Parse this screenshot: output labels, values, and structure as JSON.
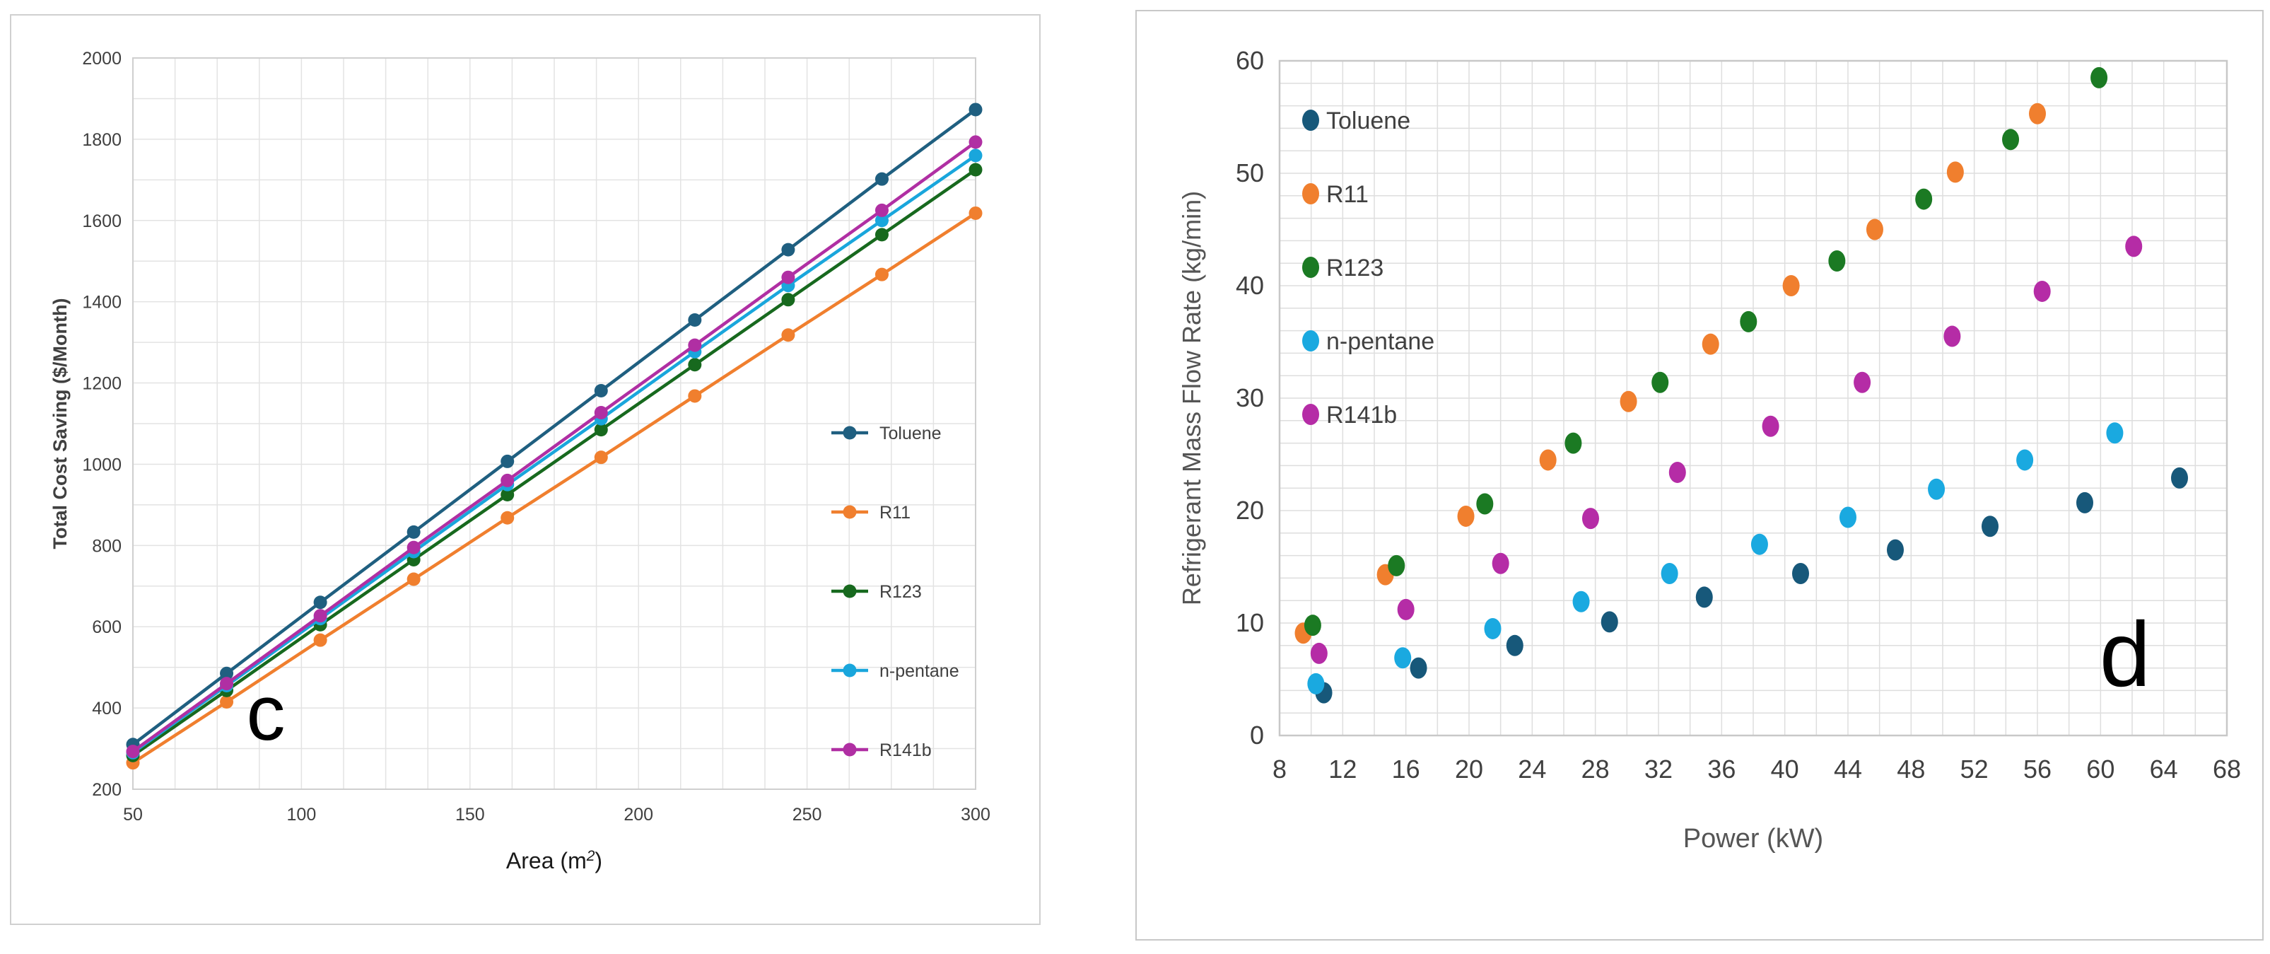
{
  "chart_data": [
    {
      "type": "line",
      "panel_letter": "c",
      "title": "",
      "xlabel": "Area (m",
      "xlabel_sup": "2",
      "xlabel_close": ")",
      "ylabel": "Total Cost Saving ($/Month)",
      "xlim": [
        50,
        300
      ],
      "ylim": [
        200,
        2000
      ],
      "xticks": [
        50,
        100,
        150,
        200,
        250,
        300
      ],
      "yticks": [
        200,
        400,
        600,
        800,
        1000,
        1200,
        1400,
        1600,
        1800,
        2000
      ],
      "grid": true,
      "legend_position": "center-right",
      "x": [
        50,
        77.8,
        105.6,
        133.3,
        161.1,
        188.9,
        216.7,
        244.4,
        272.2,
        300
      ],
      "series": [
        {
          "name": "Toluene",
          "color": "#1f5f80",
          "values": [
            310,
            485,
            660,
            833,
            1007,
            1181,
            1355,
            1528,
            1702,
            1873
          ]
        },
        {
          "name": "R11",
          "color": "#f07f2e",
          "values": [
            265,
            415,
            567,
            717,
            868,
            1017,
            1168,
            1318,
            1467,
            1618
          ]
        },
        {
          "name": "R123",
          "color": "#17691e",
          "values": [
            283,
            443,
            605,
            765,
            925,
            1085,
            1245,
            1405,
            1565,
            1725
          ]
        },
        {
          "name": "n-pentane",
          "color": "#19a6dc",
          "values": [
            290,
            455,
            620,
            785,
            950,
            1112,
            1277,
            1440,
            1600,
            1760
          ]
        },
        {
          "name": "R141b",
          "color": "#b02fa3",
          "values": [
            293,
            460,
            627,
            795,
            960,
            1127,
            1293,
            1460,
            1625,
            1793
          ]
        }
      ]
    },
    {
      "type": "scatter",
      "panel_letter": "d",
      "title": "",
      "xlabel": "Power (kW)",
      "ylabel": "Refrigerant Mass Flow Rate (kg/min)",
      "xlim": [
        8,
        68
      ],
      "ylim": [
        0,
        60
      ],
      "xticks": [
        8,
        12,
        16,
        20,
        24,
        28,
        32,
        36,
        40,
        44,
        48,
        52,
        56,
        60,
        64,
        68
      ],
      "yticks": [
        0,
        10,
        20,
        30,
        40,
        50,
        60
      ],
      "grid": true,
      "legend_position": "top-left",
      "series": [
        {
          "name": "Toluene",
          "color": "#17587a",
          "x": [
            10.8,
            16.8,
            22.9,
            28.9,
            34.9,
            41.0,
            47.0,
            53.0,
            59.0,
            65.0
          ],
          "y": [
            3.8,
            6.0,
            8.0,
            10.1,
            12.3,
            14.4,
            16.5,
            18.6,
            20.7,
            22.9
          ]
        },
        {
          "name": "R11",
          "color": "#f07f2e",
          "x": [
            9.5,
            14.7,
            19.8,
            25.0,
            30.1,
            35.3,
            40.4,
            45.7,
            50.8,
            56.0
          ],
          "y": [
            9.1,
            14.3,
            19.5,
            24.5,
            29.7,
            34.8,
            40.0,
            45.0,
            50.1,
            55.3
          ]
        },
        {
          "name": "R123",
          "color": "#1b7a23",
          "x": [
            10.1,
            15.4,
            21.0,
            26.6,
            32.1,
            37.7,
            43.3,
            48.8,
            54.3,
            59.9
          ],
          "y": [
            9.8,
            15.1,
            20.6,
            26.0,
            31.4,
            36.8,
            42.2,
            47.7,
            53.0,
            58.5
          ]
        },
        {
          "name": "n-pentane",
          "color": "#1aa9e0",
          "x": [
            10.3,
            15.8,
            21.5,
            27.1,
            32.7,
            38.4,
            44.0,
            49.6,
            55.2,
            60.9
          ],
          "y": [
            4.6,
            6.9,
            9.5,
            11.9,
            14.4,
            17.0,
            19.4,
            21.9,
            24.5,
            26.9
          ]
        },
        {
          "name": "R141b",
          "color": "#b52ca6",
          "x": [
            10.5,
            16.0,
            22.0,
            27.7,
            33.2,
            39.1,
            44.9,
            50.6,
            56.3,
            62.1
          ],
          "y": [
            7.3,
            11.2,
            15.3,
            19.3,
            23.4,
            27.5,
            31.4,
            35.5,
            39.5,
            43.5
          ]
        }
      ]
    }
  ]
}
